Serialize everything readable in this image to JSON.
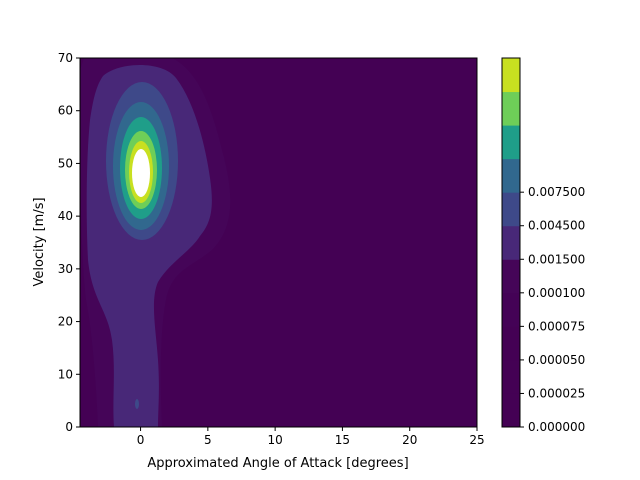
{
  "chart_data": {
    "type": "heatmap",
    "subtype": "filled-contour",
    "title": "",
    "xlabel": "Approximated Angle of Attack [degrees]",
    "ylabel": "Velocity [m/s]",
    "xlim": [
      -4.5,
      25
    ],
    "ylim": [
      0,
      70
    ],
    "x_ticks": [
      0,
      5,
      10,
      15,
      20,
      25
    ],
    "x_tick_labels": [
      "0",
      "5",
      "10",
      "15",
      "20",
      "25"
    ],
    "y_ticks": [
      0,
      10,
      20,
      30,
      40,
      50,
      60,
      70
    ],
    "y_tick_labels": [
      "0",
      "10",
      "20",
      "30",
      "40",
      "50",
      "60",
      "70"
    ],
    "colormap": "viridis",
    "grid": false,
    "peak": {
      "x": 0,
      "y": 48,
      "level": "above 0.009000"
    },
    "regions_description": "Density concentrated around x = 0 deg, y = 48 m/s; low-level plume extends down to y = 0 near x = 0; small spot near x = -0.3, y = 4.5; remainder of domain at baseline level.",
    "colorbar": {
      "tick_labels": [
        "0.000000",
        "0.000025",
        "0.000050",
        "0.000075",
        "0.000100",
        "0.001500",
        "0.004500",
        "0.007500"
      ],
      "bands": [
        {
          "range": [
            0.0,
            2.5e-05
          ],
          "color": "#440154"
        },
        {
          "range": [
            2.5e-05,
            5e-05
          ],
          "color": "#440154"
        },
        {
          "range": [
            5e-05,
            7.5e-05
          ],
          "color": "#440154"
        },
        {
          "range": [
            7.5e-05,
            0.0001
          ],
          "color": "#440256"
        },
        {
          "range": [
            0.0001,
            0.00015
          ],
          "color": "#450558"
        },
        {
          "range": [
            0.00015,
            0.0015
          ],
          "color": "#482878"
        },
        {
          "range": [
            0.0015,
            0.003
          ],
          "color": "#3e4989"
        },
        {
          "range": [
            0.003,
            0.0045
          ],
          "color": "#31688e"
        },
        {
          "range": [
            0.0045,
            0.006
          ],
          "color": "#1f9e89"
        },
        {
          "range": [
            0.006,
            0.0075
          ],
          "color": "#6ece58"
        },
        {
          "range": [
            0.0075,
            0.009
          ],
          "color": "#c8e020"
        }
      ]
    }
  }
}
